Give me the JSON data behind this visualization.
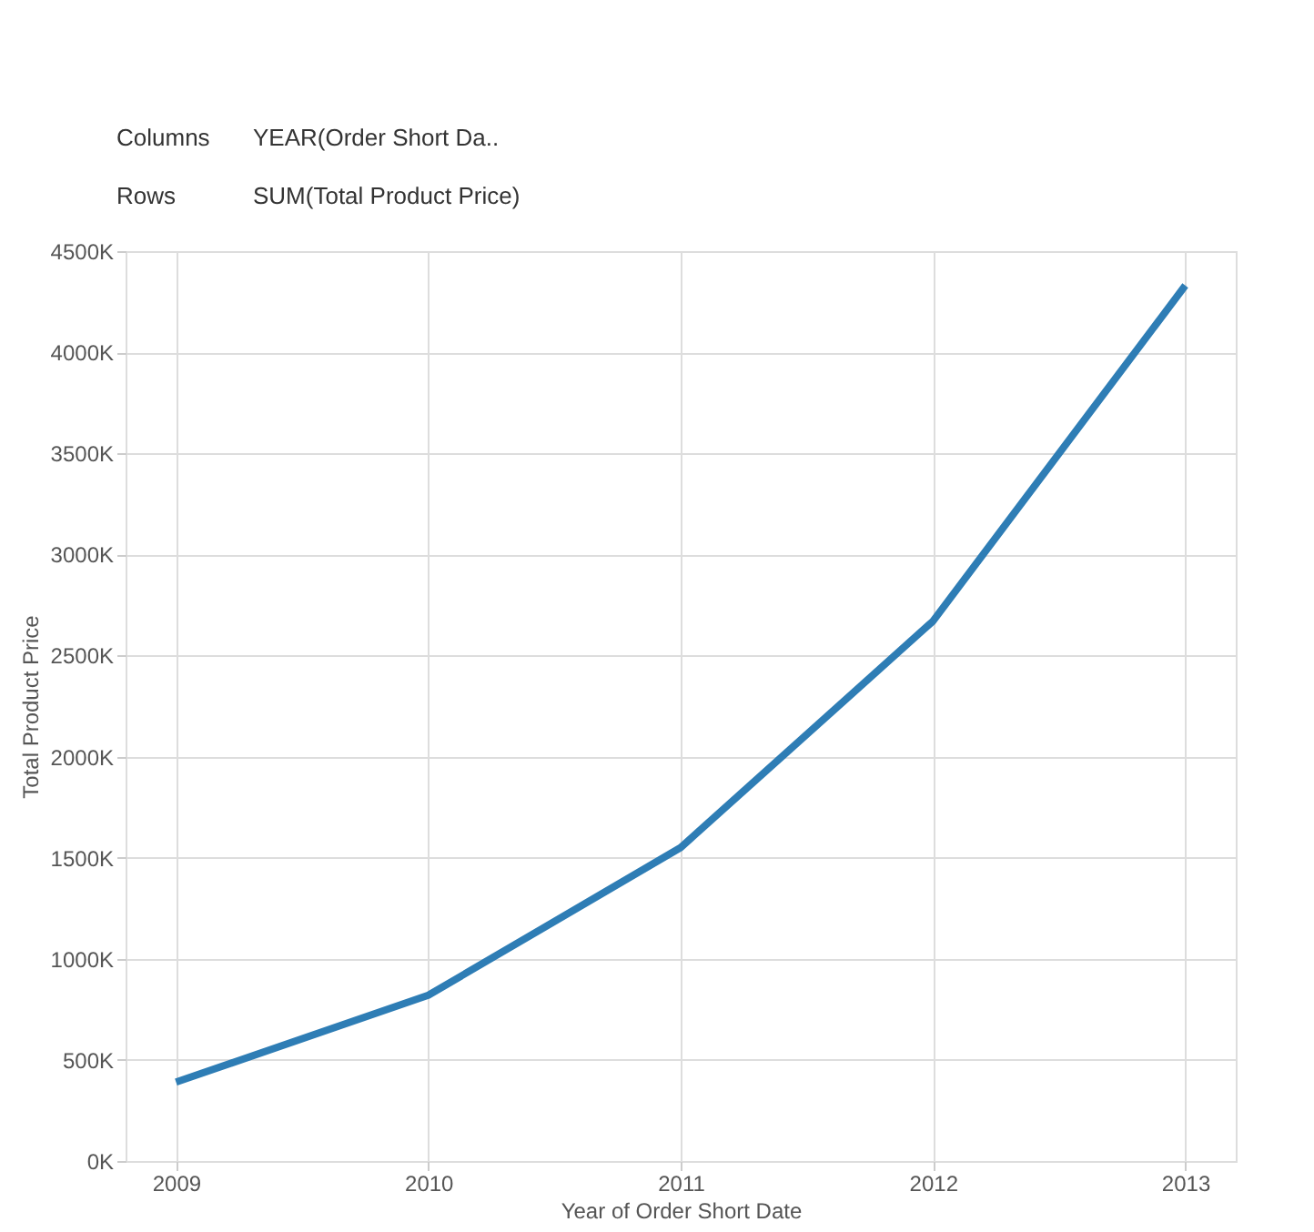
{
  "chart_data": {
    "type": "line",
    "xlabel": "Year of Order Short Date",
    "ylabel": "Total Product Price",
    "categories": [
      "2009",
      "2010",
      "2011",
      "2012",
      "2013"
    ],
    "series": [
      {
        "color": "#2e7db5",
        "values": [
          390,
          820,
          1550,
          2670,
          4330
        ]
      }
    ],
    "ylim": [
      0,
      4500
    ],
    "yticks": [
      {
        "value": 0,
        "label": "0K"
      },
      {
        "value": 500,
        "label": "500K"
      },
      {
        "value": 1000,
        "label": "1000K"
      },
      {
        "value": 1500,
        "label": "1500K"
      },
      {
        "value": 2000,
        "label": "2000K"
      },
      {
        "value": 2500,
        "label": "2500K"
      },
      {
        "value": 3000,
        "label": "3000K"
      },
      {
        "value": 3500,
        "label": "3500K"
      },
      {
        "value": 4000,
        "label": "4000K"
      },
      {
        "value": 4500,
        "label": "4500K"
      }
    ],
    "grid": true,
    "marker": "none",
    "line_style": "solid",
    "annotations": [
      "Columns",
      "YEAR(Order Short Da..",
      "Rows",
      "SUM(Total Product Price)"
    ]
  }
}
